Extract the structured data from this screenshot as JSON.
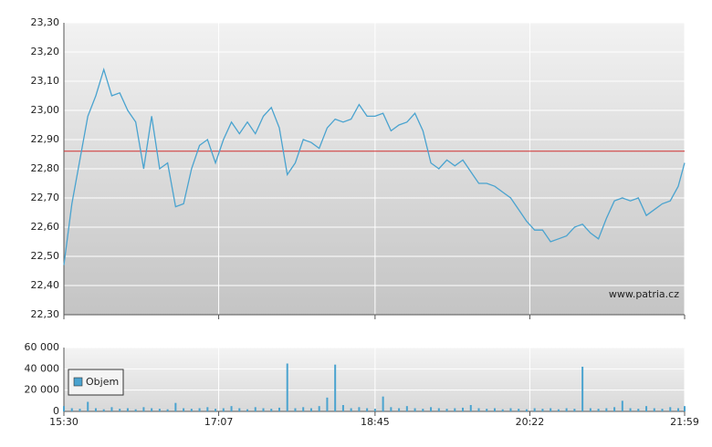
{
  "chart_data": [
    {
      "type": "line",
      "annotation": "www.patria.cz",
      "x": [
        "15:30",
        "15:35",
        "15:40",
        "15:45",
        "15:50",
        "15:55",
        "16:00",
        "16:05",
        "16:10",
        "16:15",
        "16:20",
        "16:25",
        "16:30",
        "16:35",
        "16:40",
        "16:45",
        "16:50",
        "16:55",
        "17:00",
        "17:05",
        "17:10",
        "17:15",
        "17:20",
        "17:25",
        "17:30",
        "17:35",
        "17:40",
        "17:45",
        "17:50",
        "17:55",
        "18:00",
        "18:05",
        "18:10",
        "18:15",
        "18:20",
        "18:25",
        "18:30",
        "18:35",
        "18:40",
        "18:45",
        "18:50",
        "18:55",
        "19:00",
        "19:05",
        "19:10",
        "19:15",
        "19:20",
        "19:25",
        "19:30",
        "19:35",
        "19:40",
        "19:45",
        "19:50",
        "19:55",
        "20:00",
        "20:05",
        "20:10",
        "20:15",
        "20:20",
        "20:25",
        "20:30",
        "20:35",
        "20:40",
        "20:45",
        "20:50",
        "20:55",
        "21:00",
        "21:05",
        "21:10",
        "21:15",
        "21:20",
        "21:25",
        "21:30",
        "21:35",
        "21:40",
        "21:45",
        "21:50",
        "21:55",
        "21:59"
      ],
      "values": [
        22.47,
        22.68,
        22.83,
        22.98,
        23.05,
        23.14,
        23.05,
        23.06,
        23.0,
        22.96,
        22.8,
        22.98,
        22.8,
        22.82,
        22.67,
        22.68,
        22.8,
        22.88,
        22.9,
        22.82,
        22.9,
        22.96,
        22.92,
        22.96,
        22.92,
        22.98,
        23.01,
        22.94,
        22.78,
        22.82,
        22.9,
        22.89,
        22.87,
        22.94,
        22.97,
        22.96,
        22.97,
        23.02,
        22.98,
        22.98,
        22.99,
        22.93,
        22.95,
        22.96,
        22.99,
        22.93,
        22.82,
        22.8,
        22.83,
        22.81,
        22.83,
        22.79,
        22.75,
        22.75,
        22.74,
        22.72,
        22.7,
        22.66,
        22.62,
        22.59,
        22.59,
        22.55,
        22.56,
        22.57,
        22.6,
        22.61,
        22.58,
        22.56,
        22.63,
        22.69,
        22.7,
        22.69,
        22.7,
        22.64,
        22.66,
        22.68,
        22.69,
        22.74,
        22.82
      ],
      "color": "#4aa3cf",
      "reference_line": 22.86,
      "reference_color": "#d03030",
      "xlim": [
        "15:30",
        "21:59"
      ],
      "ylim": [
        22.3,
        23.3
      ],
      "yticks": [
        {
          "value": 22.3,
          "label": "22,30"
        },
        {
          "value": 22.4,
          "label": "22,40"
        },
        {
          "value": 22.5,
          "label": "22,50"
        },
        {
          "value": 22.6,
          "label": "22,60"
        },
        {
          "value": 22.7,
          "label": "22,70"
        },
        {
          "value": 22.8,
          "label": "22,80"
        },
        {
          "value": 22.9,
          "label": "22,90"
        },
        {
          "value": 23.0,
          "label": "23,00"
        },
        {
          "value": 23.1,
          "label": "23,10"
        },
        {
          "value": 23.2,
          "label": "23,20"
        },
        {
          "value": 23.3,
          "label": "23,30"
        }
      ],
      "grid": true
    },
    {
      "type": "bar",
      "x": [
        "15:30",
        "15:35",
        "15:40",
        "15:45",
        "15:50",
        "15:55",
        "16:00",
        "16:05",
        "16:10",
        "16:15",
        "16:20",
        "16:25",
        "16:30",
        "16:35",
        "16:40",
        "16:45",
        "16:50",
        "16:55",
        "17:00",
        "17:05",
        "17:10",
        "17:15",
        "17:20",
        "17:25",
        "17:30",
        "17:35",
        "17:40",
        "17:45",
        "17:50",
        "17:55",
        "18:00",
        "18:05",
        "18:10",
        "18:15",
        "18:20",
        "18:25",
        "18:30",
        "18:35",
        "18:40",
        "18:45",
        "18:50",
        "18:55",
        "19:00",
        "19:05",
        "19:10",
        "19:15",
        "19:20",
        "19:25",
        "19:30",
        "19:35",
        "19:40",
        "19:45",
        "19:50",
        "19:55",
        "20:00",
        "20:05",
        "20:10",
        "20:15",
        "20:20",
        "20:25",
        "20:30",
        "20:35",
        "20:40",
        "20:45",
        "20:50",
        "20:55",
        "21:00",
        "21:05",
        "21:10",
        "21:15",
        "21:20",
        "21:25",
        "21:30",
        "21:35",
        "21:40",
        "21:45",
        "21:50",
        "21:55",
        "21:59"
      ],
      "series": [
        {
          "name": "Objem",
          "color": "#4aa3cf",
          "values": [
            5000,
            3000,
            2500,
            9000,
            3000,
            2000,
            4000,
            2500,
            3000,
            2000,
            4000,
            3000,
            2500,
            2000,
            8000,
            3000,
            2500,
            3000,
            4000,
            2500,
            3000,
            5000,
            3000,
            2000,
            4000,
            3000,
            2500,
            3500,
            45000,
            3000,
            4000,
            3000,
            5000,
            13000,
            44000,
            6000,
            3000,
            4000,
            3000,
            2500,
            14000,
            4000,
            3000,
            5000,
            3000,
            2500,
            4000,
            3000,
            2500,
            3000,
            3500,
            6000,
            3000,
            2500,
            3000,
            2000,
            3000,
            2500,
            2000,
            3000,
            2500,
            3000,
            2000,
            3000,
            2500,
            42000,
            3000,
            2500,
            3000,
            4000,
            10000,
            3000,
            2500,
            5000,
            3000,
            2500,
            4000,
            3000,
            5000
          ]
        }
      ],
      "xlim": [
        "15:30",
        "21:59"
      ],
      "xticks": [
        "15:30",
        "17:07",
        "18:45",
        "20:22",
        "21:59"
      ],
      "ylim": [
        0,
        60000
      ],
      "yticks": [
        0,
        {
          "value": 20000,
          "label": "20 000"
        },
        {
          "value": 40000,
          "label": "40 000"
        },
        {
          "value": 60000,
          "label": "60 000"
        }
      ],
      "grid": true
    }
  ]
}
